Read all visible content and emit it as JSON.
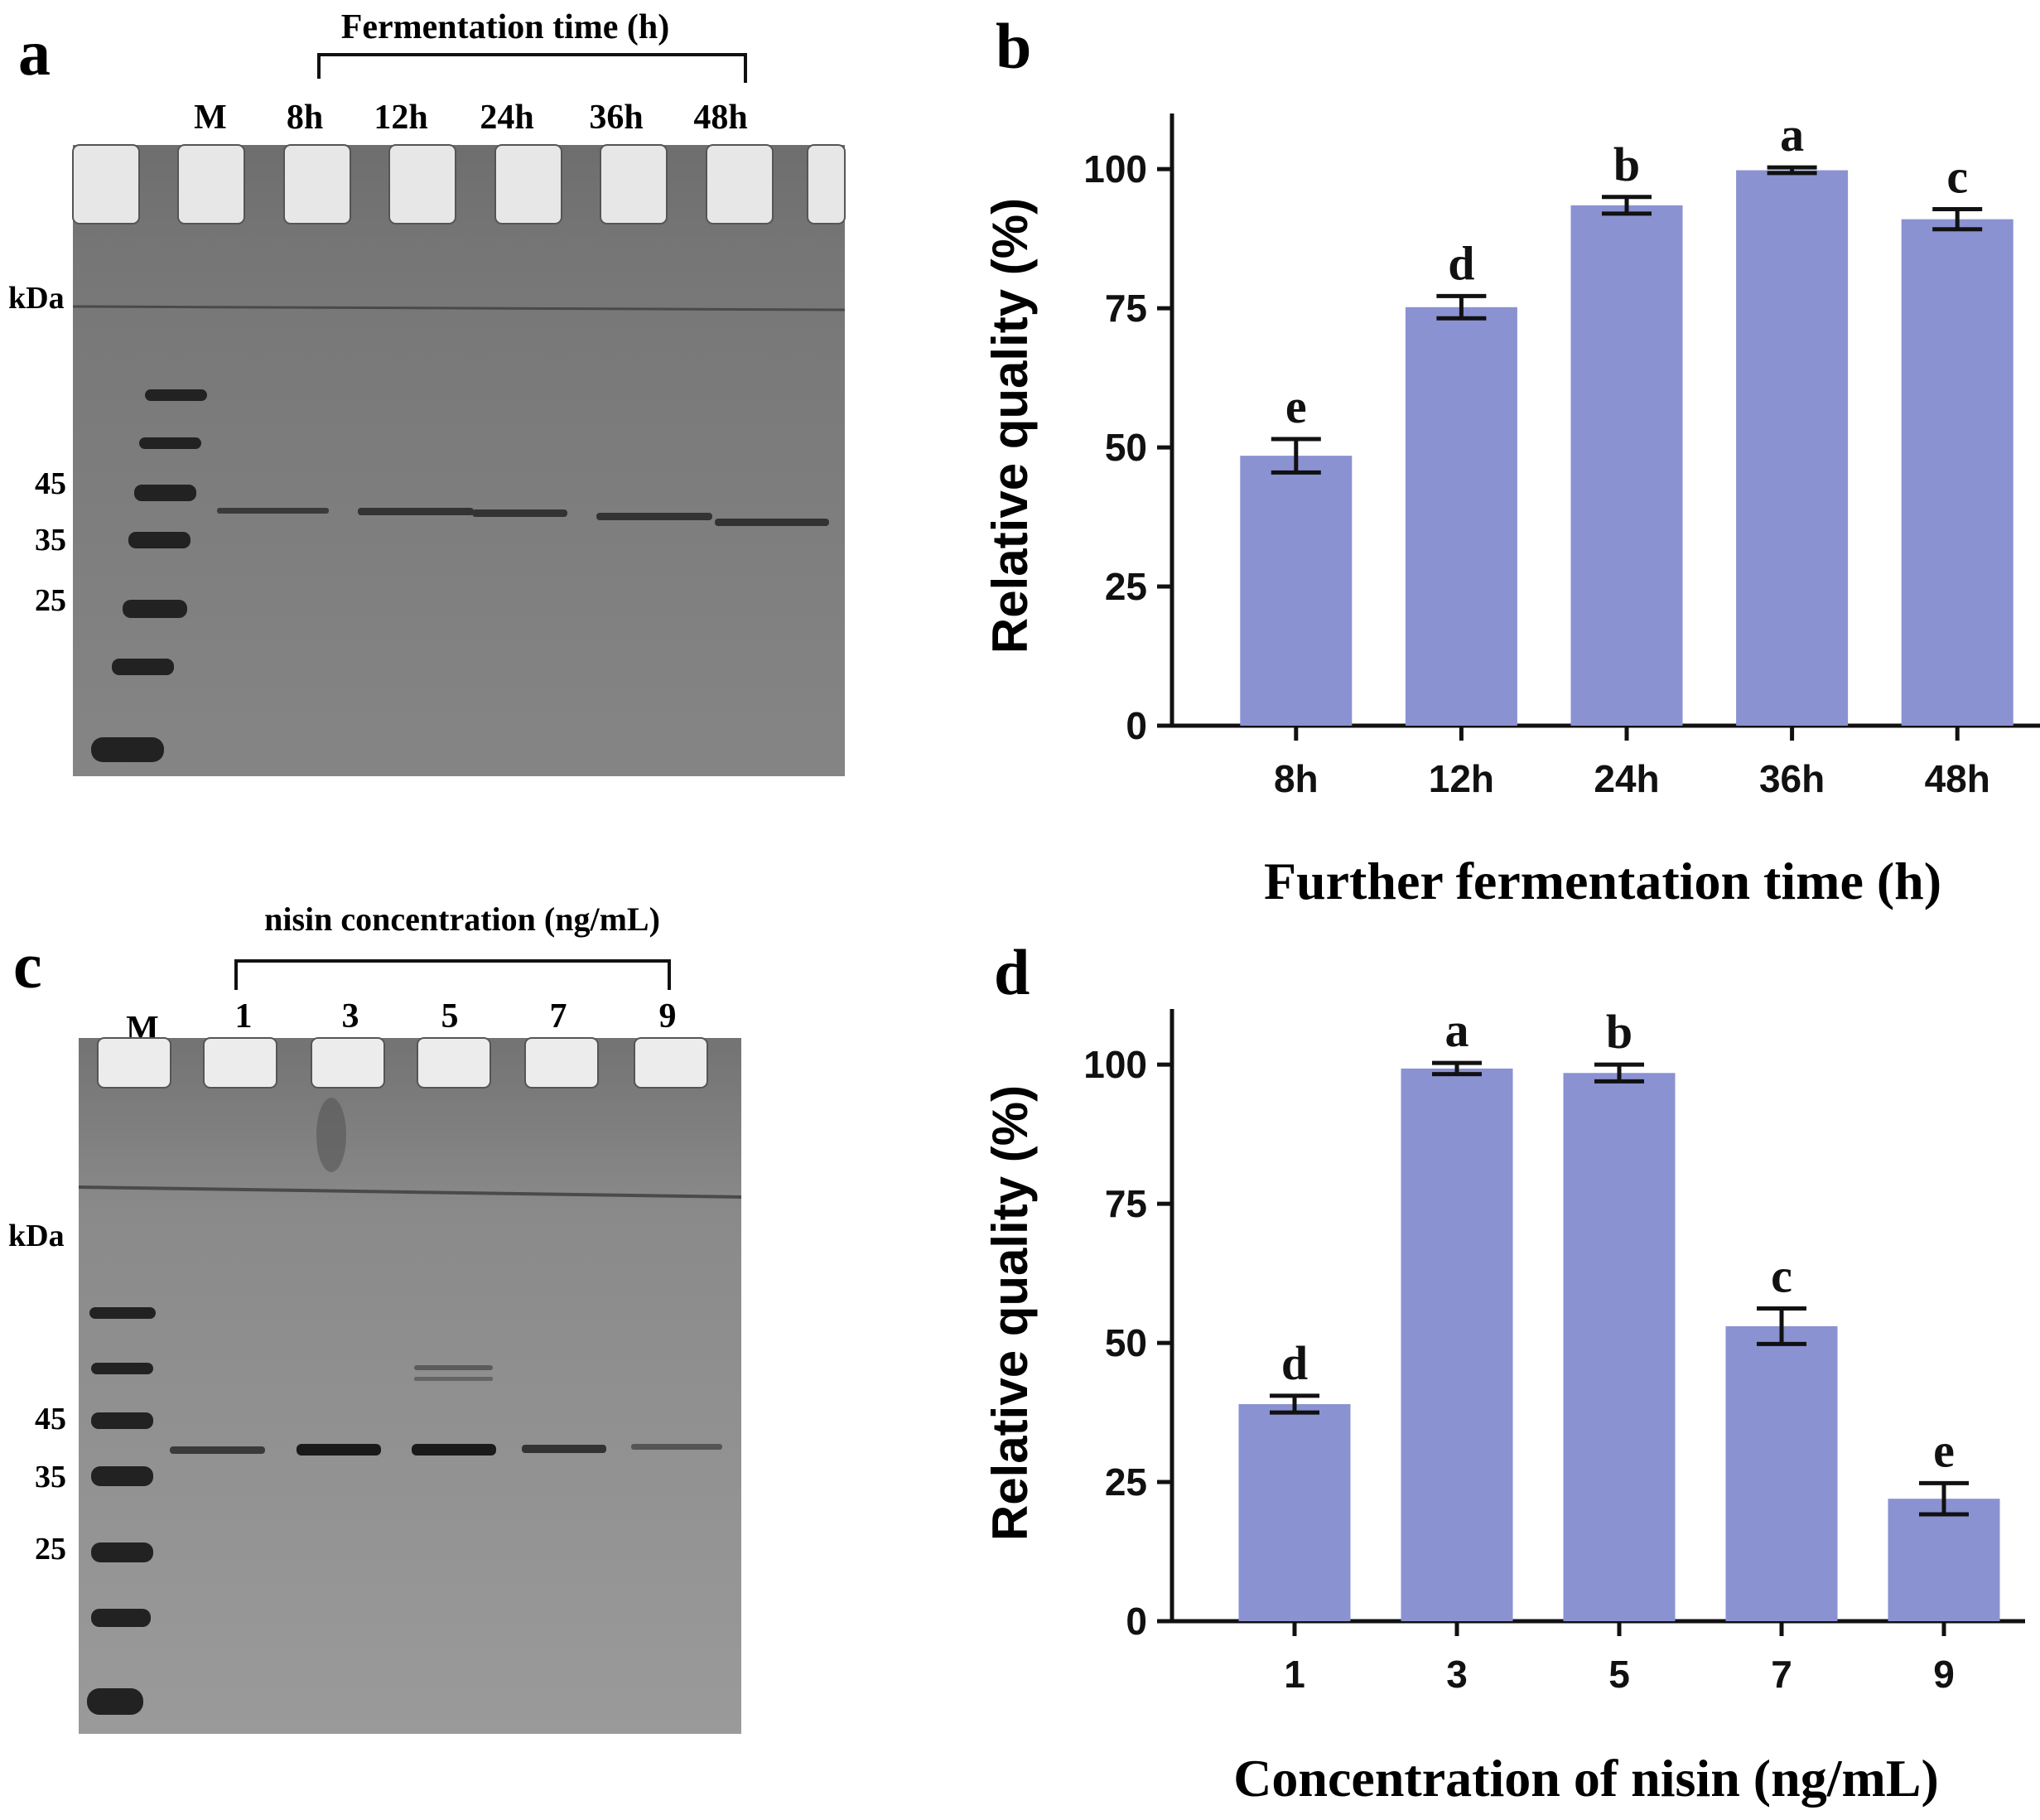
{
  "colors": {
    "bar": "#8a92d2",
    "gel_background": "#7a7a7a",
    "well": "#ececec",
    "ink": "#111111"
  },
  "panel_a": {
    "label": "a",
    "bracket_title": "Fermentation time (h)",
    "lane_labels": [
      "M",
      "8h",
      "12h",
      "24h",
      "36h",
      "48h"
    ],
    "unit_label": "kDa",
    "marker_labels": [
      "45",
      "35",
      "25"
    ]
  },
  "panel_c": {
    "label": "c",
    "bracket_title": "nisin concentration (ng/mL)",
    "lane_labels": [
      "M",
      "1",
      "3",
      "5",
      "7",
      "9"
    ],
    "unit_label": "kDa",
    "marker_labels": [
      "45",
      "35",
      "25"
    ]
  },
  "chart_data": [
    {
      "panel_label": "b",
      "type": "bar",
      "categories": [
        "8h",
        "12h",
        "24h",
        "36h",
        "48h"
      ],
      "values": [
        48.5,
        75.2,
        93.5,
        99.8,
        91.0
      ],
      "errors": [
        3.0,
        2.0,
        1.5,
        0.5,
        1.8
      ],
      "significance": [
        "e",
        "d",
        "b",
        "a",
        "c"
      ],
      "xlabel": "Further fermentation time (h)",
      "ylabel": "Relative quality (%)",
      "ylim": [
        0,
        110
      ],
      "yticks": [
        0,
        25,
        50,
        75,
        100
      ],
      "ytick_labels": [
        "0",
        "25",
        "50",
        "75",
        "100"
      ]
    },
    {
      "panel_label": "d",
      "type": "bar",
      "categories": [
        "1",
        "3",
        "5",
        "7",
        "9"
      ],
      "values": [
        39.0,
        99.3,
        98.5,
        53.0,
        22.0
      ],
      "errors": [
        1.5,
        1.0,
        1.5,
        3.2,
        2.8
      ],
      "significance": [
        "d",
        "a",
        "b",
        "c",
        "e"
      ],
      "xlabel": "Concentration of nisin (ng/mL)",
      "ylabel": "Relative quality (%)",
      "ylim": [
        0,
        110
      ],
      "yticks": [
        0,
        25,
        50,
        75,
        100
      ],
      "ytick_labels": [
        "0",
        "25",
        "50",
        "75",
        "100"
      ]
    }
  ]
}
